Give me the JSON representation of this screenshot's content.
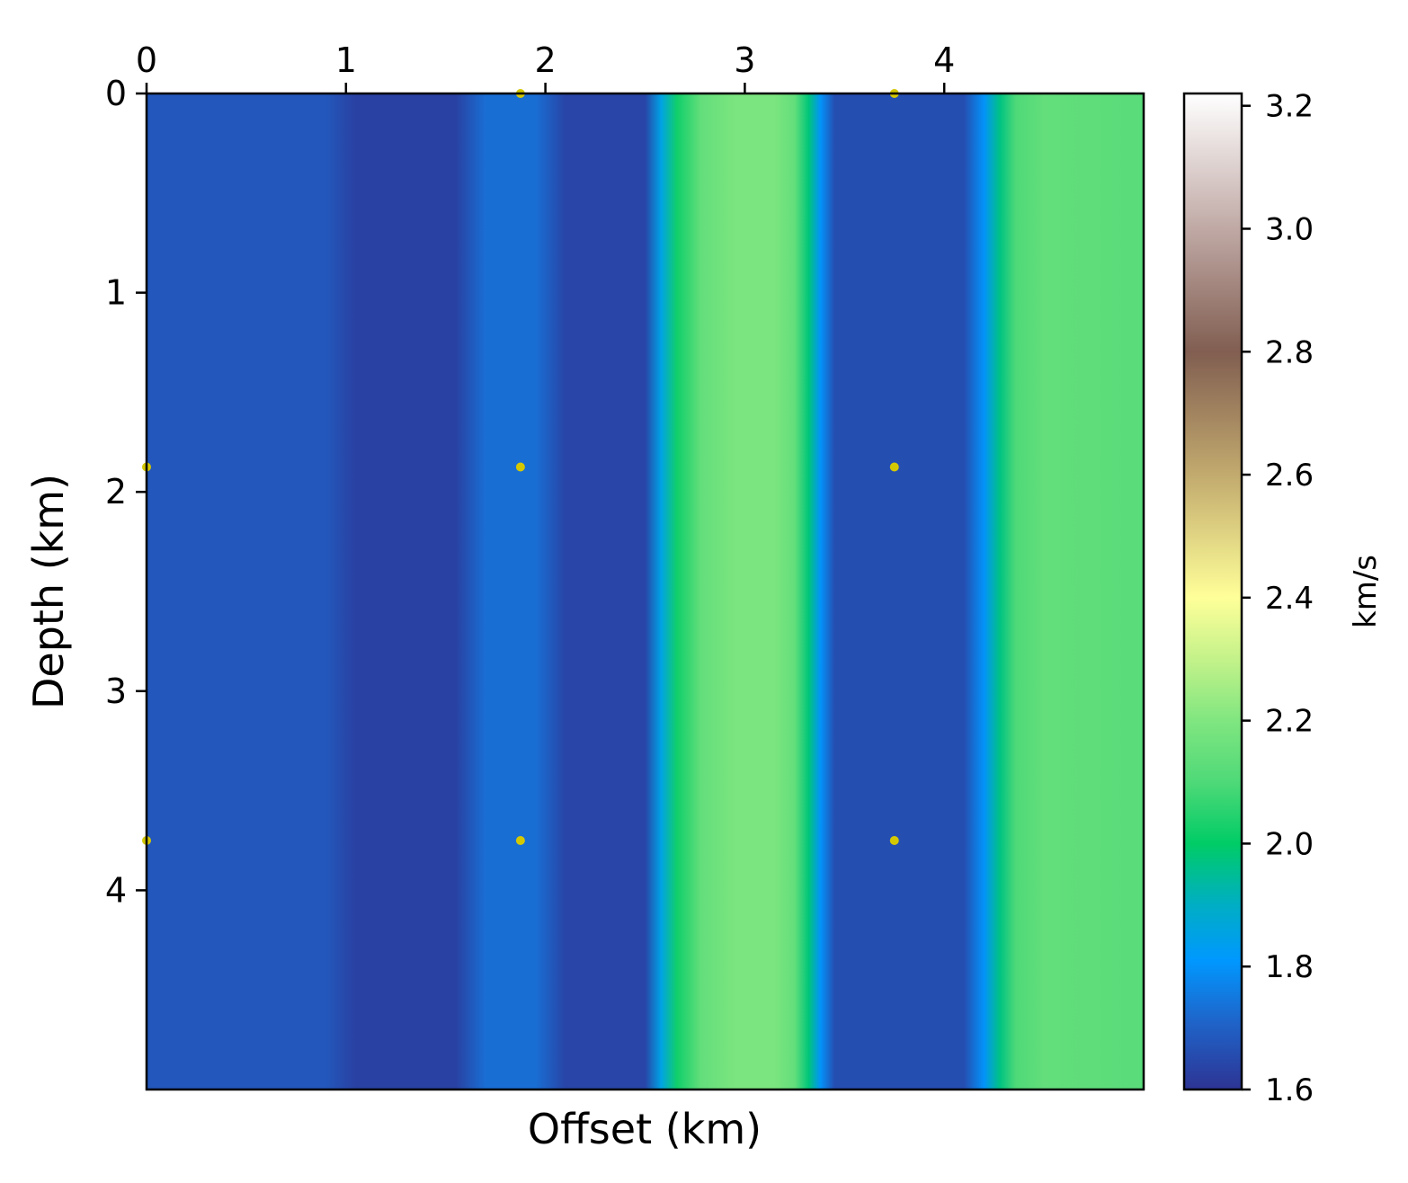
{
  "chart_data": {
    "type": "heatmap",
    "title": "",
    "xlabel": "Offset (km)",
    "ylabel": "Depth (km)",
    "x_axis_position": "top",
    "xlim": [
      0,
      5.0
    ],
    "ylim": [
      5.0,
      0
    ],
    "x_ticks": [
      0,
      1,
      2,
      3,
      4
    ],
    "x_tick_labels": [
      "0",
      "1",
      "2",
      "3",
      "4"
    ],
    "y_ticks": [
      0,
      1,
      2,
      3,
      4
    ],
    "y_tick_labels": [
      "0",
      "1",
      "2",
      "3",
      "4"
    ],
    "grid": false,
    "colormap": "terrain",
    "colorbar": {
      "label": "km/s",
      "vmin": 1.6,
      "vmax": 3.22,
      "ticks": [
        1.6,
        1.8,
        2.0,
        2.2,
        2.4,
        2.6,
        2.8,
        3.0,
        3.2
      ],
      "tick_labels": [
        "1.6",
        "1.8",
        "2.0",
        "2.2",
        "2.4",
        "2.6",
        "2.8",
        "3.0",
        "3.2"
      ],
      "stops": [
        {
          "value": 1.6,
          "color": "#2d3494"
        },
        {
          "value": 1.71,
          "color": "#1f64c9"
        },
        {
          "value": 1.81,
          "color": "#0098ff"
        },
        {
          "value": 1.9,
          "color": "#00aec4"
        },
        {
          "value": 2.0,
          "color": "#00cc66"
        },
        {
          "value": 2.1,
          "color": "#4fd978"
        },
        {
          "value": 2.2,
          "color": "#80e680"
        },
        {
          "value": 2.3,
          "color": "#c4f28a"
        },
        {
          "value": 2.4,
          "color": "#ffff99"
        },
        {
          "value": 2.6,
          "color": "#c2aa6e"
        },
        {
          "value": 2.8,
          "color": "#815e51"
        },
        {
          "value": 3.0,
          "color": "#c0a9a5"
        },
        {
          "value": 3.22,
          "color": "#ffffff"
        }
      ]
    },
    "velocity_profile": {
      "note_axis": "offset (km) vs velocity (km/s), constant with depth",
      "points": [
        {
          "x": 0.0,
          "v": 1.68
        },
        {
          "x": 0.9,
          "v": 1.68
        },
        {
          "x": 1.05,
          "v": 1.63
        },
        {
          "x": 1.55,
          "v": 1.63
        },
        {
          "x": 1.7,
          "v": 1.73
        },
        {
          "x": 1.95,
          "v": 1.73
        },
        {
          "x": 2.1,
          "v": 1.64
        },
        {
          "x": 2.5,
          "v": 1.64
        },
        {
          "x": 2.58,
          "v": 1.85
        },
        {
          "x": 2.66,
          "v": 2.02
        },
        {
          "x": 2.78,
          "v": 2.14
        },
        {
          "x": 2.95,
          "v": 2.19
        },
        {
          "x": 3.15,
          "v": 2.19
        },
        {
          "x": 3.25,
          "v": 2.14
        },
        {
          "x": 3.32,
          "v": 1.98
        },
        {
          "x": 3.38,
          "v": 1.8
        },
        {
          "x": 3.45,
          "v": 1.66
        },
        {
          "x": 4.1,
          "v": 1.66
        },
        {
          "x": 4.2,
          "v": 1.8
        },
        {
          "x": 4.28,
          "v": 1.97
        },
        {
          "x": 4.36,
          "v": 2.1
        },
        {
          "x": 4.5,
          "v": 2.14
        },
        {
          "x": 4.75,
          "v": 2.13
        },
        {
          "x": 5.0,
          "v": 2.12
        }
      ]
    },
    "markers": {
      "color": "#d4c800",
      "points": [
        {
          "x": 1.875,
          "y": 0.0
        },
        {
          "x": 3.75,
          "y": 0.0
        },
        {
          "x": 0.0,
          "y": 1.875
        },
        {
          "x": 1.875,
          "y": 1.875
        },
        {
          "x": 3.75,
          "y": 1.875
        },
        {
          "x": 0.0,
          "y": 3.75
        },
        {
          "x": 1.875,
          "y": 3.75
        },
        {
          "x": 3.75,
          "y": 3.75
        }
      ]
    }
  }
}
